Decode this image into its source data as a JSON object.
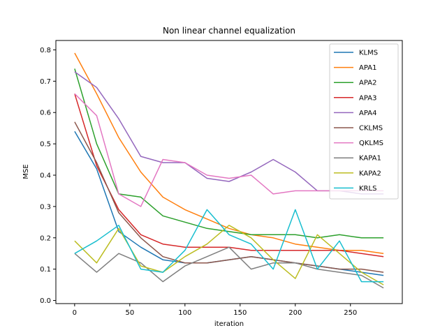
{
  "chart_data": {
    "type": "line",
    "title": "Non linear channel equalization",
    "xlabel": "iteration",
    "ylabel": "MSE",
    "xlim": [
      -17,
      297
    ],
    "ylim": [
      -0.01,
      0.83
    ],
    "xticks": [
      0,
      50,
      100,
      150,
      200,
      250
    ],
    "yticks": [
      0.0,
      0.1,
      0.2,
      0.3,
      0.4,
      0.5,
      0.6,
      0.7,
      0.8
    ],
    "grid": false,
    "legend_position": "top-right",
    "x": [
      0,
      20,
      40,
      60,
      80,
      100,
      120,
      140,
      160,
      180,
      200,
      220,
      240,
      260,
      280
    ],
    "series": [
      {
        "name": "KLMS",
        "color": "#1f77b4",
        "values": [
          0.54,
          0.42,
          0.22,
          0.17,
          0.13,
          0.12,
          0.12,
          0.13,
          0.14,
          0.13,
          0.12,
          0.11,
          0.1,
          0.09,
          0.08
        ]
      },
      {
        "name": "APA1",
        "color": "#ff7f0e",
        "values": [
          0.79,
          0.66,
          0.52,
          0.41,
          0.33,
          0.29,
          0.26,
          0.23,
          0.21,
          0.2,
          0.18,
          0.17,
          0.16,
          0.16,
          0.15
        ]
      },
      {
        "name": "APA2",
        "color": "#2ca02c",
        "values": [
          0.74,
          0.5,
          0.34,
          0.33,
          0.27,
          0.25,
          0.23,
          0.22,
          0.21,
          0.21,
          0.21,
          0.2,
          0.21,
          0.2,
          0.2
        ]
      },
      {
        "name": "APA3",
        "color": "#d62728",
        "values": [
          0.66,
          0.43,
          0.29,
          0.21,
          0.18,
          0.17,
          0.17,
          0.17,
          0.16,
          0.16,
          0.16,
          0.16,
          0.16,
          0.15,
          0.14
        ]
      },
      {
        "name": "APA4",
        "color": "#9467bd",
        "values": [
          0.73,
          0.68,
          0.58,
          0.46,
          0.44,
          0.44,
          0.39,
          0.38,
          0.41,
          0.45,
          0.41,
          0.35,
          0.35,
          0.34,
          0.34
        ]
      },
      {
        "name": "CKLMS",
        "color": "#8c564b",
        "values": [
          0.57,
          0.44,
          0.28,
          0.2,
          0.14,
          0.12,
          0.12,
          0.13,
          0.14,
          0.13,
          0.12,
          0.11,
          0.1,
          0.1,
          0.09
        ]
      },
      {
        "name": "QKLMS",
        "color": "#e377c2",
        "values": [
          0.66,
          0.59,
          0.34,
          0.3,
          0.45,
          0.44,
          0.4,
          0.39,
          0.4,
          0.34,
          0.35,
          0.35,
          0.35,
          0.35,
          0.35
        ]
      },
      {
        "name": "KAPA1",
        "color": "#7f7f7f",
        "values": [
          0.15,
          0.09,
          0.15,
          0.12,
          0.06,
          0.11,
          0.14,
          0.17,
          0.1,
          0.12,
          0.12,
          0.1,
          0.09,
          0.08,
          0.04
        ]
      },
      {
        "name": "KAPA2",
        "color": "#bcbd22",
        "values": [
          0.19,
          0.12,
          0.23,
          0.11,
          0.09,
          0.14,
          0.18,
          0.24,
          0.2,
          0.13,
          0.07,
          0.21,
          0.15,
          0.09,
          0.05
        ]
      },
      {
        "name": "KRLS",
        "color": "#17becf",
        "values": [
          0.15,
          0.19,
          0.24,
          0.1,
          0.09,
          0.16,
          0.29,
          0.21,
          0.18,
          0.1,
          0.29,
          0.1,
          0.19,
          0.06,
          0.06
        ]
      }
    ]
  }
}
